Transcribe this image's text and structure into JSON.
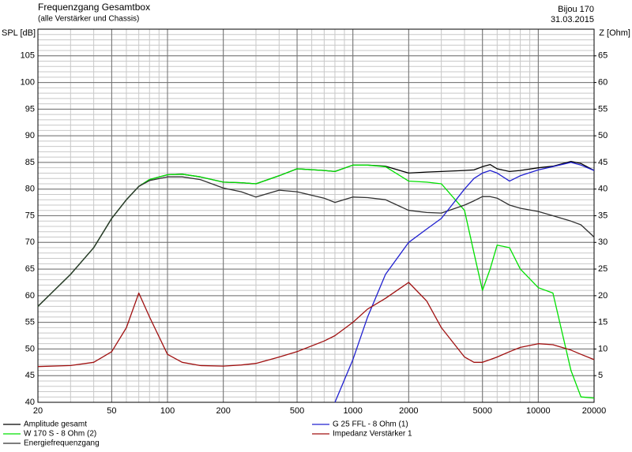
{
  "chart_data": {
    "type": "line",
    "title": "Frequenzgang Gesamtbox",
    "subtitle": "(alle Verstärker und Chassis)",
    "annotations": [
      "Bijou 170",
      "31.03.2015"
    ],
    "y_label": "SPL [dB]",
    "y2_label": "Z [Ohm]",
    "x": [
      20,
      30,
      40,
      50,
      60,
      70,
      80,
      100,
      120,
      150,
      200,
      250,
      300,
      400,
      500,
      700,
      800,
      1000,
      1200,
      1500,
      2000,
      2500,
      3000,
      4000,
      4500,
      5000,
      5500,
      6000,
      7000,
      8000,
      10000,
      12000,
      15000,
      17000,
      20000
    ],
    "series": [
      {
        "name": "Amplitude gesamt",
        "color": "#000000",
        "values": [
          58,
          64,
          69,
          74.5,
          78,
          80.5,
          81.8,
          82.7,
          82.8,
          82.3,
          81.3,
          81.2,
          81,
          82.5,
          83.8,
          83.5,
          83.3,
          84.5,
          84.5,
          84.3,
          83,
          83.2,
          83.3,
          83.5,
          83.6,
          84.2,
          84.6,
          83.8,
          83.3,
          83.5,
          84,
          84.3,
          85.2,
          84.8,
          83.5
        ]
      },
      {
        "name": "W 170 S - 8 Ohm (2)",
        "color": "#00e000",
        "values": [
          58,
          64,
          69,
          74.5,
          78,
          80.5,
          81.8,
          82.7,
          82.8,
          82.3,
          81.3,
          81.2,
          81,
          82.5,
          83.8,
          83.5,
          83.3,
          84.5,
          84.5,
          84.2,
          81.5,
          81.3,
          81,
          76,
          68,
          61,
          65,
          69.5,
          69,
          65,
          61.5,
          60.5,
          46,
          41,
          40.8
        ]
      },
      {
        "name": "Energiefrequenzgang",
        "color": "#303030",
        "values": [
          58,
          64,
          69,
          74.5,
          78,
          80.5,
          81.6,
          82.3,
          82.3,
          81.8,
          80.2,
          79.5,
          78.5,
          79.8,
          79.5,
          78.3,
          77.5,
          78.5,
          78.4,
          78,
          76,
          75.6,
          75.5,
          77,
          77.8,
          78.6,
          78.6,
          78.3,
          77,
          76.4,
          75.8,
          75,
          74,
          73.3,
          71
        ]
      },
      {
        "name": "G 25 FFL - 8 Ohm (1)",
        "color": "#2020d0",
        "values": [
          null,
          null,
          null,
          null,
          null,
          null,
          null,
          null,
          null,
          null,
          null,
          null,
          null,
          null,
          null,
          null,
          40,
          48,
          56,
          64,
          70,
          72.5,
          74.5,
          80,
          82,
          83,
          83.5,
          83,
          81.5,
          82.5,
          83.6,
          84.2,
          85,
          84.5,
          83.5
        ]
      },
      {
        "name": "Impedanz Verstärker 1",
        "color": "#a01010",
        "axis": "y2",
        "values": [
          6.7,
          6.9,
          7.5,
          9.5,
          14,
          20.5,
          16,
          9,
          7.5,
          6.9,
          6.8,
          7,
          7.3,
          8.5,
          9.5,
          11.5,
          12.5,
          15,
          17.5,
          19.5,
          22.5,
          19,
          14,
          8.5,
          7.5,
          7.5,
          8,
          8.5,
          9.5,
          10.3,
          11,
          10.8,
          9.8,
          9,
          8
        ]
      }
    ],
    "x_log": true,
    "xlim": [
      20,
      20000
    ],
    "xticks": [
      20,
      50,
      100,
      200,
      500,
      1000,
      2000,
      5000,
      10000,
      20000
    ],
    "ylim": [
      40,
      110
    ],
    "yticks": [
      40,
      45,
      50,
      55,
      60,
      65,
      70,
      75,
      80,
      85,
      90,
      95,
      100,
      105
    ],
    "y2lim": [
      0,
      70
    ],
    "y2ticks": [
      5,
      10,
      15,
      20,
      25,
      30,
      35,
      40,
      45,
      50,
      55,
      60,
      65
    ],
    "grid": true,
    "minor_grid": true,
    "legend": "bottom"
  }
}
